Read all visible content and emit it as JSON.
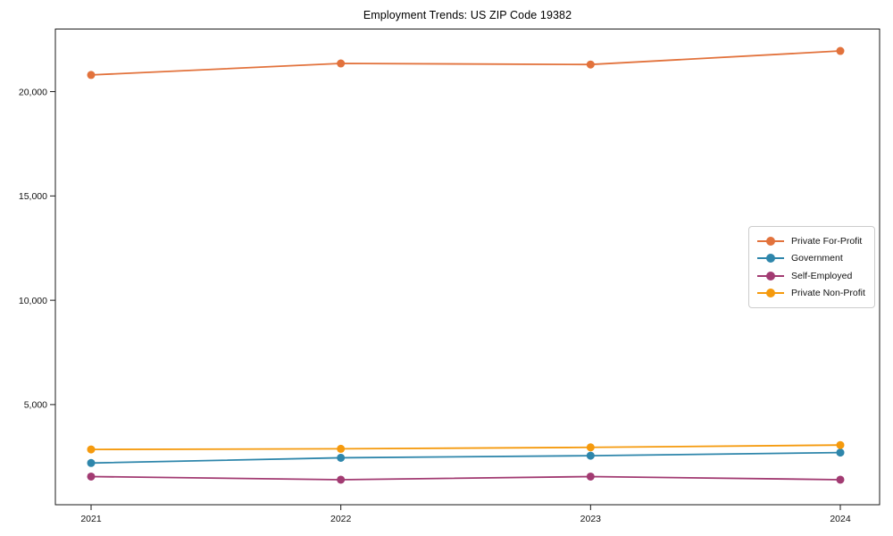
{
  "chart_data": {
    "type": "line",
    "title": "Employment Trends: US ZIP Code 19382",
    "categories": [
      "2021",
      "2022",
      "2023",
      "2024"
    ],
    "xlabel": "",
    "ylabel": "",
    "ylim": [
      200,
      23000
    ],
    "grid": false,
    "legend_position": "center-right",
    "axis_color": "#1a1a1a",
    "text_color": "#111111",
    "yticks": {
      "values": [
        5000,
        10000,
        15000,
        20000
      ],
      "labels": [
        "5,000",
        "10,000",
        "15,000",
        "20,000"
      ]
    },
    "series": [
      {
        "name": "Private For-Profit",
        "color": "#e2723c",
        "values": [
          20800,
          21350,
          21300,
          21950
        ]
      },
      {
        "name": "Government",
        "color": "#2e86ab",
        "values": [
          2200,
          2450,
          2550,
          2700
        ]
      },
      {
        "name": "Self-Employed",
        "color": "#a23b72",
        "values": [
          1550,
          1400,
          1550,
          1400
        ]
      },
      {
        "name": "Private Non-Profit",
        "color": "#f59a0d",
        "values": [
          2850,
          2880,
          2950,
          3060
        ]
      }
    ]
  }
}
